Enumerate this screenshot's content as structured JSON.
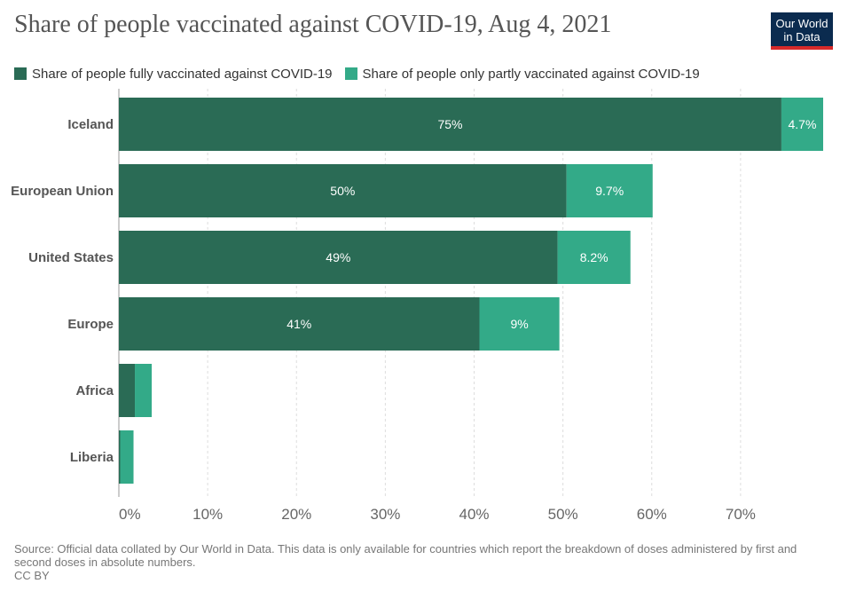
{
  "title": "Share of people vaccinated against COVID-19, Aug 4, 2021",
  "logo": {
    "line1": "Our World",
    "line2": "in Data"
  },
  "colors": {
    "fully": "#2a6b55",
    "partly": "#33aa88",
    "grid": "#dddddd",
    "axis": "#999999",
    "logo_bg": "#0b2b4f",
    "logo_bar": "#d72a2a"
  },
  "chart_data": {
    "type": "bar",
    "orientation": "horizontal",
    "stacked": true,
    "categories": [
      "Iceland",
      "European Union",
      "United States",
      "Europe",
      "Africa",
      "Liberia"
    ],
    "series": [
      {
        "name": "Share of people fully vaccinated against COVID-19",
        "values": [
          74.6,
          50.4,
          49.4,
          40.6,
          1.8,
          0.15
        ],
        "labels": [
          "75%",
          "50%",
          "49%",
          "41%",
          "",
          ""
        ]
      },
      {
        "name": "Share of people only partly vaccinated against COVID-19",
        "values": [
          4.7,
          9.7,
          8.2,
          9.0,
          1.9,
          1.5
        ],
        "labels": [
          "4.7%",
          "9.7%",
          "8.2%",
          "9%",
          "",
          ""
        ]
      }
    ],
    "xlim": [
      0,
      79.3
    ],
    "xticks": [
      0,
      10,
      20,
      30,
      40,
      50,
      60,
      70
    ],
    "xtick_labels": [
      "0%",
      "10%",
      "20%",
      "30%",
      "40%",
      "50%",
      "60%",
      "70%"
    ],
    "grid": true,
    "legend_position": "top-left"
  },
  "footer": {
    "source": "Source: Official data collated by Our World in Data. This data is only available for countries which report the breakdown of doses administered by first and second doses in absolute numbers.",
    "license": "CC BY"
  }
}
